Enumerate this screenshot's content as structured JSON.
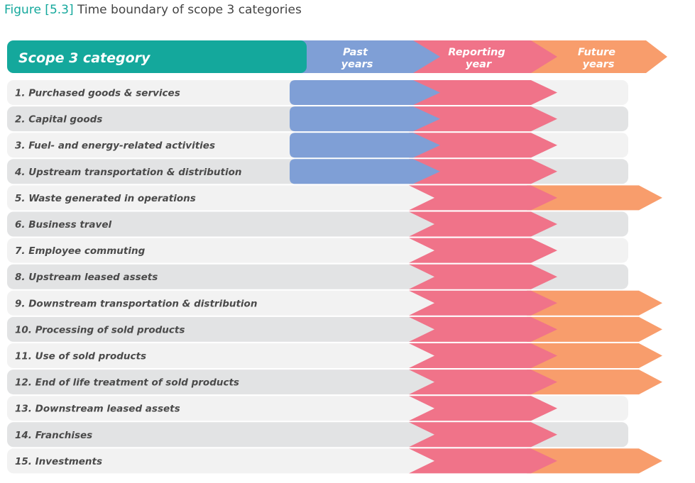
{
  "figure": {
    "number": "Figure [5.3]",
    "title": "Time boundary of scope 3 categories"
  },
  "header": {
    "category_label": "Scope 3 category",
    "past": [
      "Past",
      "years"
    ],
    "reporting": [
      "Reporting",
      "year"
    ],
    "future": [
      "Future",
      "years"
    ]
  },
  "colors": {
    "teal": "#14a89c",
    "past": "#7f9fd6",
    "reporting": "#f07389",
    "future": "#f89d6c",
    "row_light": "#f2f2f2",
    "row_dark": "#e2e3e4"
  },
  "rows": [
    {
      "label": "1. Purchased goods & services",
      "past": true,
      "future": false
    },
    {
      "label": "2. Capital goods",
      "past": true,
      "future": false
    },
    {
      "label": "3. Fuel- and energy-related activities",
      "past": true,
      "future": false
    },
    {
      "label": "4. Upstream transportation & distribution",
      "past": true,
      "future": false
    },
    {
      "label": "5. Waste generated in operations",
      "past": false,
      "future": true
    },
    {
      "label": "6. Business travel",
      "past": false,
      "future": false
    },
    {
      "label": "7. Employee commuting",
      "past": false,
      "future": false
    },
    {
      "label": "8. Upstream leased assets",
      "past": false,
      "future": false
    },
    {
      "label": "9. Downstream transportation & distribution",
      "past": false,
      "future": true
    },
    {
      "label": "10. Processing of  sold products",
      "past": false,
      "future": true
    },
    {
      "label": "11. Use of sold products",
      "past": false,
      "future": true
    },
    {
      "label": "12. End of life treatment of sold products",
      "past": false,
      "future": true
    },
    {
      "label": "13. Downstream leased assets",
      "past": false,
      "future": false
    },
    {
      "label": "14. Franchises",
      "past": false,
      "future": false
    },
    {
      "label": "15. Investments",
      "past": false,
      "future": true
    }
  ]
}
